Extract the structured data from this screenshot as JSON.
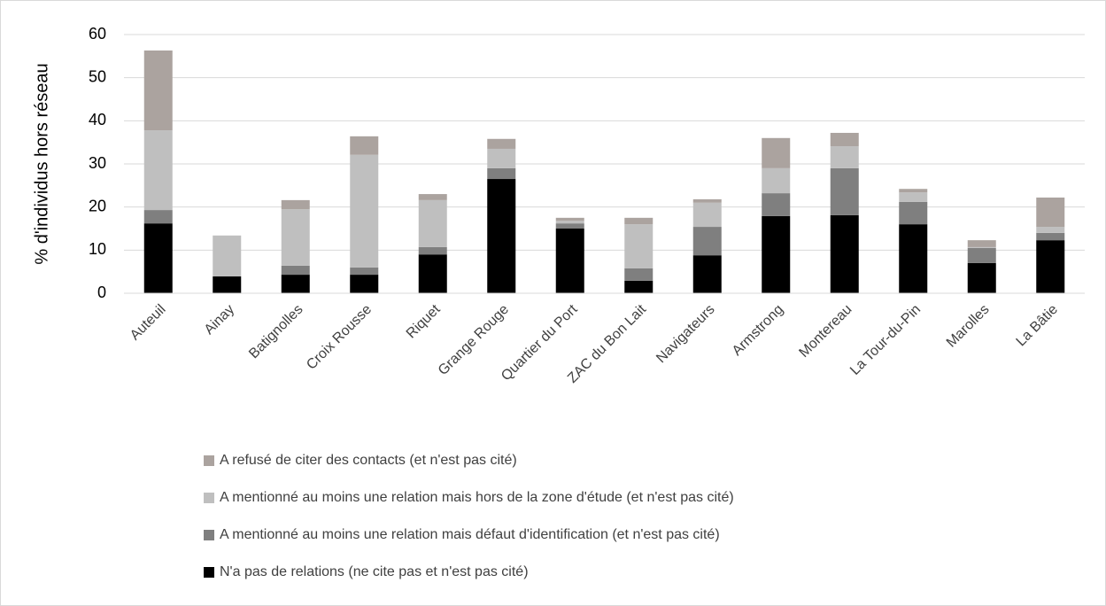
{
  "chart_data": {
    "type": "stacked_bar",
    "y_label": "% d'individus hors réseau",
    "categories": [
      "Auteuil",
      "Ainay",
      "Batignolles",
      "Croix Rousse",
      "Riquet",
      "Grange Rouge",
      "Quartier du Port",
      "ZAC du Bon Lait",
      "Navigateurs",
      "Armstrong",
      "Montereau",
      "La Tour-du-Pin",
      "Marolles",
      "La Bâtie"
    ],
    "series": [
      {
        "name": "N'a pas de relations (ne cite pas et n'est pas cité)",
        "color": "#000000",
        "values": [
          16.2,
          3.9,
          4.3,
          4.3,
          9.0,
          26.5,
          15.0,
          2.9,
          8.8,
          17.9,
          18.1,
          16.0,
          7.0,
          12.3
        ]
      },
      {
        "name": "A mentionné au moins une relation mais défaut d'identification (et n'est pas cité)",
        "color": "#7f7f7f",
        "values": [
          3.1,
          0,
          2.1,
          1.7,
          1.7,
          2.5,
          1.2,
          2.9,
          6.6,
          5.3,
          10.9,
          5.2,
          3.5,
          1.7
        ]
      },
      {
        "name": "A mentionné au moins une relation mais hors de la zone d'étude (et n'est pas cité)",
        "color": "#bfbfbf",
        "values": [
          18.5,
          9.5,
          13.1,
          26.1,
          10.9,
          4.5,
          0.6,
          10.2,
          5.6,
          5.8,
          5.1,
          2.2,
          0.2,
          1.4
        ]
      },
      {
        "name": "A refusé de citer des contacts (et n'est pas cité)",
        "color": "#aba39f",
        "values": [
          18.5,
          0,
          2.1,
          4.3,
          1.4,
          2.3,
          0.7,
          1.5,
          0.8,
          7.0,
          3.1,
          0.8,
          1.6,
          6.8
        ]
      }
    ],
    "ylim": [
      0,
      60
    ],
    "yticks": [
      0,
      10,
      20,
      30,
      40,
      50,
      60
    ],
    "grid": true
  }
}
